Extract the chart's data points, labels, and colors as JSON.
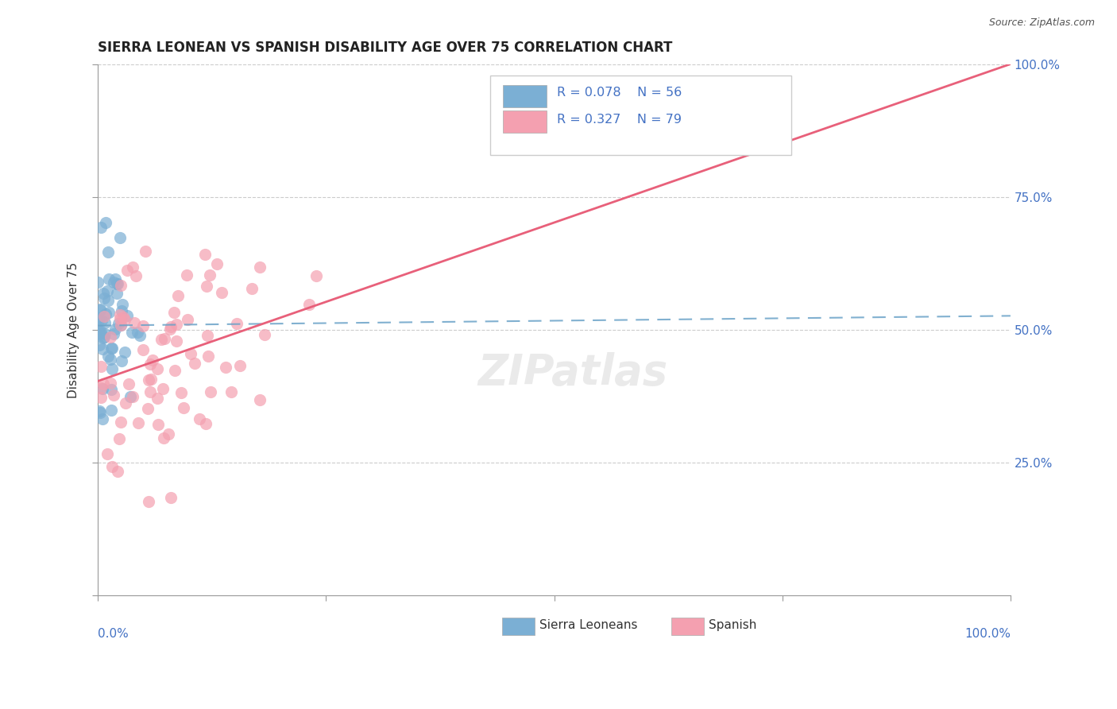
{
  "title": "SIERRA LEONEAN VS SPANISH DISABILITY AGE OVER 75 CORRELATION CHART",
  "source": "Source: ZipAtlas.com",
  "ylabel": "Disability Age Over 75",
  "legend_label1": "Sierra Leoneans",
  "legend_label2": "Spanish",
  "r1": 0.078,
  "n1": 56,
  "r2": 0.327,
  "n2": 79,
  "color_blue": "#7BAFD4",
  "color_pink": "#F4A0B0",
  "color_blue_line": "#6BA3C8",
  "color_pink_line": "#E8607A",
  "watermark": "ZIPatlas",
  "text_color": "#4472C4",
  "grid_color": "#CCCCCC"
}
